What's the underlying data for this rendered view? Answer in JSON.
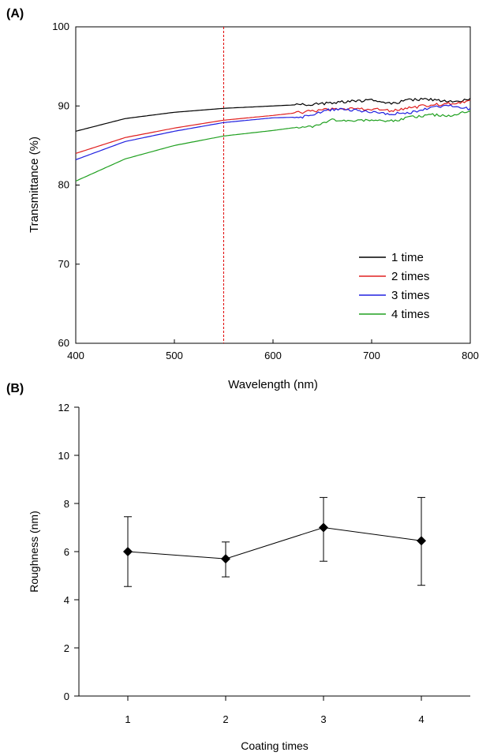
{
  "chart_data": [
    {
      "panel_label": "(A)",
      "type": "line",
      "xlabel": "Wavelength (nm)",
      "ylabel": "Transmittance (%)",
      "xlim": [
        400,
        800
      ],
      "ylim": [
        60,
        100
      ],
      "xticks": [
        400,
        500,
        600,
        700,
        800
      ],
      "yticks": [
        60,
        70,
        80,
        90,
        100
      ],
      "grid": false,
      "legend_placement": "bottom-right",
      "reference_line": {
        "x": 550,
        "color": "#e00000",
        "style": "dashed"
      },
      "series": [
        {
          "name": "1 time",
          "color": "#000000",
          "x": [
            400,
            450,
            500,
            550,
            600,
            650,
            680,
            700,
            720,
            740,
            760,
            780,
            800
          ],
          "y": [
            86.8,
            88.4,
            89.2,
            89.7,
            90.0,
            90.3,
            90.6,
            90.7,
            90.3,
            90.8,
            90.8,
            90.6,
            90.8
          ]
        },
        {
          "name": "2 times",
          "color": "#e02020",
          "x": [
            400,
            450,
            500,
            550,
            600,
            650,
            680,
            700,
            720,
            740,
            760,
            780,
            800
          ],
          "y": [
            84.0,
            86.0,
            87.2,
            88.2,
            88.8,
            89.5,
            89.7,
            89.6,
            89.4,
            89.8,
            90.1,
            90.3,
            90.6
          ]
        },
        {
          "name": "3 times",
          "color": "#2020e0",
          "x": [
            400,
            450,
            500,
            550,
            600,
            630,
            660,
            680,
            700,
            720,
            740,
            760,
            780,
            800
          ],
          "y": [
            83.2,
            85.5,
            86.8,
            87.9,
            88.5,
            88.6,
            89.6,
            89.5,
            89.3,
            89.0,
            89.2,
            89.8,
            90.0,
            89.6
          ]
        },
        {
          "name": "4 times",
          "color": "#20a020",
          "x": [
            400,
            450,
            500,
            550,
            600,
            630,
            640,
            660,
            680,
            700,
            720,
            740,
            760,
            780,
            800
          ],
          "y": [
            80.5,
            83.3,
            85.0,
            86.2,
            86.9,
            87.4,
            87.3,
            88.3,
            88.1,
            88.2,
            88.1,
            88.6,
            88.9,
            88.8,
            89.4
          ]
        }
      ]
    },
    {
      "panel_label": "(B)",
      "type": "line",
      "xlabel": "Coating times",
      "ylabel": "Roughness (nm)",
      "xlim": [
        0.5,
        4.5
      ],
      "ylim": [
        0,
        12
      ],
      "xticks": [
        1,
        2,
        3,
        4
      ],
      "yticks": [
        0,
        2,
        4,
        6,
        8,
        10,
        12
      ],
      "grid": false,
      "series": [
        {
          "name": "",
          "color": "#000000",
          "marker": "diamond",
          "x": [
            1,
            2,
            3,
            4
          ],
          "y": [
            6.0,
            5.7,
            7.0,
            6.45
          ],
          "error_low": [
            4.55,
            4.95,
            5.6,
            4.6
          ],
          "error_high": [
            7.45,
            6.4,
            8.25,
            8.25
          ]
        }
      ]
    }
  ]
}
